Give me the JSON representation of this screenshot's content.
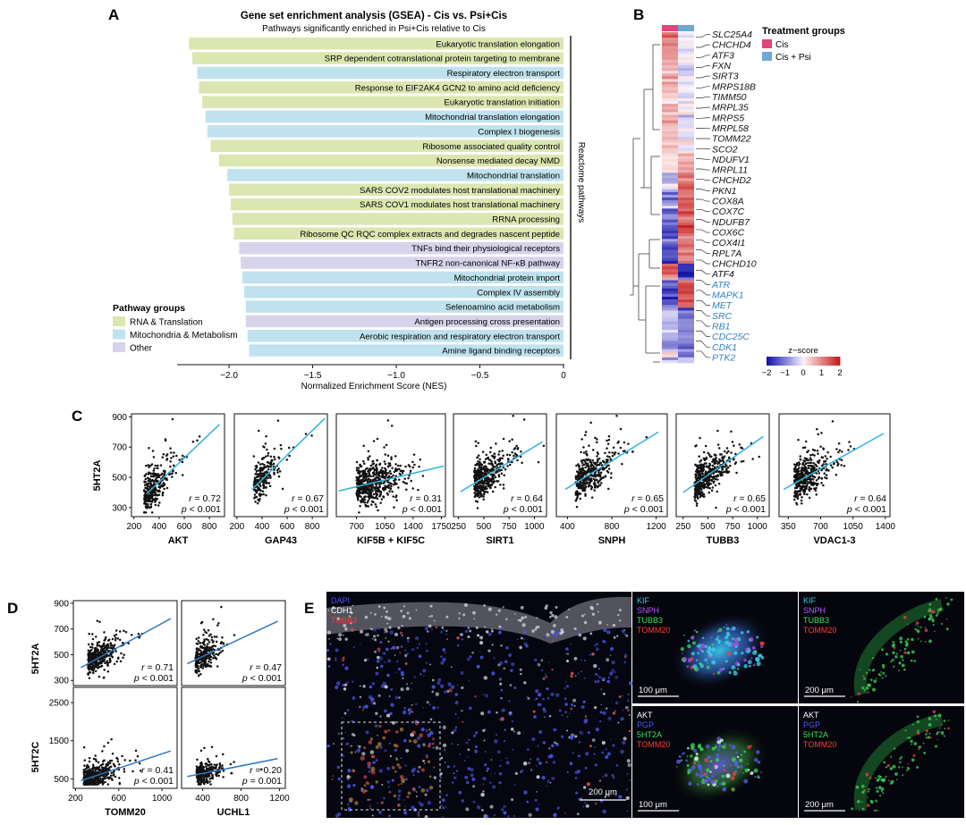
{
  "panel_letters": {
    "A": "A",
    "B": "B",
    "C": "C",
    "D": "D",
    "E": "E"
  },
  "colors": {
    "rna": "#dbe6b0",
    "mito": "#bfe2ee",
    "other": "#d7d3ea",
    "cis": "#e0457b",
    "cis_psi": "#6fa8d6",
    "fit_c": "#2fb3df",
    "fit_d": "#2b77c2",
    "gene_blue": "#2f80c8"
  },
  "gsea": {
    "title": "Gene set enrichment analysis (GSEA) - Cis vs. Psi+Cis",
    "subtitle": "Pathways significantly enriched in Psi+Cis relative to Cis",
    "side_label": "Reactome pathways",
    "legend_title": "Pathway groups",
    "legend_items": [
      {
        "label": "RNA & Translation",
        "group": "rna"
      },
      {
        "label": "Mitochondria & Metabolism",
        "group": "mito"
      },
      {
        "label": "Other",
        "group": "other"
      }
    ]
  },
  "chart_data": [
    {
      "type": "bar",
      "orientation": "horizontal",
      "title": "Gene set enrichment analysis (GSEA) - Cis vs. Psi+Cis",
      "subtitle": "Pathways significantly enriched in Psi+Cis relative to Cis",
      "xlabel": "Normalized Enrichment Score (NES)",
      "xlim": [
        -2.3,
        0
      ],
      "xticks": [
        "−2.0",
        "−1.5",
        "−1.0",
        "−0.5",
        "0"
      ],
      "xtick_values": [
        -2.0,
        -1.5,
        -1.0,
        -0.5,
        0
      ],
      "categories": [
        "Eukaryotic translation elongation",
        "SRP dependent cotranslational protein targeting to membrane",
        "Respiratory electron transport",
        "Response to EIF2AK4 GCN2 to amino acid deficiency",
        "Eukaryotic translation initiation",
        "Mitochondrial translation elongation",
        "Complex I biogenesis",
        "Ribosome associated quality control",
        "Nonsense mediated decay NMD",
        "Mitochondrial translation",
        "SARS COV2 modulates host translational machinery",
        "SARS COV1 modulates host translational machinery",
        "RRNA processing",
        "Ribosome QC RQC complex extracts and degrades nascent peptide",
        "TNFs bind their physiological receptors",
        "TNFR2 non-canonical NF-κB pathway",
        "Mitochondrial protein import",
        "Complex IV assembly",
        "Selenoamino acid metabolism",
        "Antigen processing cross presentation",
        "Aerobic respiration and respiratory electron transport",
        "Amine ligand binding receptors"
      ],
      "values": [
        -2.24,
        -2.22,
        -2.19,
        -2.18,
        -2.16,
        -2.14,
        -2.13,
        -2.11,
        -2.06,
        -2.01,
        -2.0,
        -1.99,
        -1.98,
        -1.97,
        -1.94,
        -1.93,
        -1.92,
        -1.91,
        -1.9,
        -1.9,
        -1.89,
        -1.88
      ],
      "groups": [
        "rna",
        "rna",
        "mito",
        "rna",
        "rna",
        "mito",
        "mito",
        "rna",
        "rna",
        "mito",
        "rna",
        "rna",
        "rna",
        "rna",
        "other",
        "other",
        "mito",
        "mito",
        "mito",
        "other",
        "mito",
        "mito"
      ]
    },
    {
      "type": "heatmap",
      "columns": [
        "Cis",
        "Cis + Psi"
      ],
      "legend_title": "Treatment groups",
      "colorbar_title": "z−score",
      "colorbar_ticks": [
        "−2",
        "−1",
        "0",
        "1",
        "2"
      ],
      "colorbar_values": [
        -2,
        -1,
        0,
        1,
        2
      ],
      "genes": [
        {
          "name": "SLC25A4",
          "hl": false
        },
        {
          "name": "CHCHD4",
          "hl": false
        },
        {
          "name": "ATF3",
          "hl": false
        },
        {
          "name": "FXN",
          "hl": false
        },
        {
          "name": "SIRT3",
          "hl": false
        },
        {
          "name": "MRPS18B",
          "hl": false
        },
        {
          "name": "TIMM50",
          "hl": false
        },
        {
          "name": "MRPL35",
          "hl": false
        },
        {
          "name": "MRPS5",
          "hl": false
        },
        {
          "name": "MRPL58",
          "hl": false
        },
        {
          "name": "TOMM22",
          "hl": false
        },
        {
          "name": "SCO2",
          "hl": false
        },
        {
          "name": "NDUFV1",
          "hl": false
        },
        {
          "name": "MRPL11",
          "hl": false
        },
        {
          "name": "CHCHD2",
          "hl": false
        },
        {
          "name": "PKN1",
          "hl": false
        },
        {
          "name": "COX8A",
          "hl": false
        },
        {
          "name": "COX7C",
          "hl": false
        },
        {
          "name": "NDUFB7",
          "hl": false
        },
        {
          "name": "COX6C",
          "hl": false
        },
        {
          "name": "COX4I1",
          "hl": false
        },
        {
          "name": "RPL7A",
          "hl": false
        },
        {
          "name": "CHCHD10",
          "hl": false
        },
        {
          "name": "ATF4",
          "hl": false
        },
        {
          "name": "ATR",
          "hl": true
        },
        {
          "name": "MAPK1",
          "hl": true
        },
        {
          "name": "MET",
          "hl": true
        },
        {
          "name": "SRC",
          "hl": true
        },
        {
          "name": "RB1",
          "hl": true
        },
        {
          "name": "CDC25C",
          "hl": true
        },
        {
          "name": "CDK1",
          "hl": true
        },
        {
          "name": "PTK2",
          "hl": true
        }
      ]
    },
    {
      "type": "scatter",
      "ylabel": "5HT2A",
      "yticks": [
        "300",
        "500",
        "700",
        "900"
      ],
      "ytick_values": [
        300,
        500,
        700,
        900
      ],
      "ylim": [
        240,
        920
      ],
      "panels": [
        {
          "xlabel": "AKT",
          "xticks": [
            "200",
            "400",
            "600",
            "800"
          ],
          "xtick_values": [
            200,
            400,
            600,
            800
          ],
          "xlim": [
            180,
            920
          ],
          "r": "0.72",
          "p": "0.001",
          "fit": [
            [
              300,
              390
            ],
            [
              880,
              850
            ]
          ],
          "cx": 330,
          "cy": 430,
          "sx": 100,
          "sy": 110,
          "n": 300
        },
        {
          "xlabel": "GAP43",
          "xticks": [
            "200",
            "400",
            "600",
            "800"
          ],
          "xtick_values": [
            200,
            400,
            600,
            800
          ],
          "xlim": [
            180,
            920
          ],
          "r": "0.67",
          "p": "0.001",
          "fit": [
            [
              320,
              420
            ],
            [
              900,
              890
            ]
          ],
          "cx": 380,
          "cy": 450,
          "sx": 90,
          "sy": 110,
          "n": 220
        },
        {
          "xlabel": "KIF5B + KIF5C",
          "xticks": [
            "700",
            "1050",
            "1400",
            "1750"
          ],
          "xtick_values": [
            700,
            1050,
            1400,
            1750
          ],
          "xlim": [
            450,
            1800
          ],
          "r": "0.31",
          "p": "0.001",
          "fit": [
            [
              480,
              410
            ],
            [
              1780,
              575
            ]
          ],
          "cx": 830,
          "cy": 430,
          "sx": 260,
          "sy": 120,
          "n": 520
        },
        {
          "xlabel": "SIRT1",
          "xticks": [
            "250",
            "500",
            "750",
            "1000"
          ],
          "xtick_values": [
            250,
            500,
            750,
            1000
          ],
          "xlim": [
            200,
            1120
          ],
          "r": "0.64",
          "p": "0.001",
          "fit": [
            [
              270,
              405
            ],
            [
              1080,
              735
            ]
          ],
          "cx": 480,
          "cy": 440,
          "sx": 150,
          "sy": 110,
          "n": 420
        },
        {
          "xlabel": "SNPH",
          "xticks": [
            "400",
            "800",
            "1200"
          ],
          "xtick_values": [
            400,
            800,
            1200
          ],
          "xlim": [
            300,
            1300
          ],
          "r": "0.65",
          "p": "0.001",
          "fit": [
            [
              380,
              420
            ],
            [
              1220,
              800
            ]
          ],
          "cx": 550,
          "cy": 450,
          "sx": 150,
          "sy": 110,
          "n": 380
        },
        {
          "xlabel": "TUBB3",
          "xticks": [
            "250",
            "500",
            "750",
            "1000"
          ],
          "xtick_values": [
            250,
            500,
            750,
            1000
          ],
          "xlim": [
            180,
            1120
          ],
          "r": "0.65",
          "p": "0.001",
          "fit": [
            [
              250,
              400
            ],
            [
              1060,
              770
            ]
          ],
          "cx": 450,
          "cy": 440,
          "sx": 170,
          "sy": 110,
          "n": 420
        },
        {
          "xlabel": "VDAC1-3",
          "xticks": [
            "350",
            "700",
            "1050",
            "1400"
          ],
          "xtick_values": [
            350,
            700,
            1050,
            1400
          ],
          "xlim": [
            250,
            1450
          ],
          "r": "0.64",
          "p": "0.001",
          "fit": [
            [
              300,
              420
            ],
            [
              1380,
              790
            ]
          ],
          "cx": 500,
          "cy": 440,
          "sx": 170,
          "sy": 110,
          "n": 420
        }
      ]
    },
    {
      "type": "scatter",
      "xticks": [
        "200",
        "600",
        "1000"
      ],
      "xtick_values": [
        200,
        600,
        1000
      ],
      "xticks_right": [
        "400",
        "800",
        "1200"
      ],
      "xtick_values_right": [
        400,
        800,
        1200
      ],
      "panels": [
        {
          "row": 0,
          "col": 0,
          "ylabel": "5HT2A",
          "xlabel": "",
          "xlim": [
            180,
            1140
          ],
          "ylim": [
            260,
            920
          ],
          "yticks": [
            "300",
            "500",
            "700",
            "900"
          ],
          "ytick_values": [
            300,
            500,
            700,
            900
          ],
          "r": "0.71",
          "p": "0.001",
          "fit": [
            [
              250,
              400
            ],
            [
              1080,
              780
            ]
          ],
          "cx": 380,
          "cy": 440,
          "sx": 130,
          "sy": 110,
          "n": 360
        },
        {
          "row": 0,
          "col": 1,
          "ylabel": "",
          "xlabel": "",
          "xlim": [
            180,
            1260
          ],
          "ylim": [
            260,
            920
          ],
          "r": "0.47",
          "p": "0.001",
          "fit": [
            [
              240,
              430
            ],
            [
              1180,
              760
            ]
          ],
          "cx": 380,
          "cy": 470,
          "sx": 110,
          "sy": 110,
          "n": 260
        },
        {
          "row": 1,
          "col": 0,
          "ylabel": "5HT2C",
          "xlabel": "TOMM20",
          "xlim": [
            180,
            1140
          ],
          "ylim": [
            250,
            2900
          ],
          "yticks": [
            "500",
            "1500",
            "2500"
          ],
          "ytick_values": [
            500,
            1500,
            2500
          ],
          "r": "0.41",
          "p": "0.001",
          "fit": [
            [
              250,
              450
            ],
            [
              1080,
              1230
            ]
          ],
          "cx": 340,
          "cy": 650,
          "sx": 130,
          "sy": 300,
          "n": 380
        },
        {
          "row": 1,
          "col": 1,
          "ylabel": "",
          "xlabel": "UCHL1",
          "xlim": [
            180,
            1260
          ],
          "ylim": [
            250,
            2900
          ],
          "r": "0.20",
          "p": "0.001",
          "fit": [
            [
              240,
              560
            ],
            [
              1180,
              1030
            ]
          ],
          "cx": 390,
          "cy": 650,
          "sx": 110,
          "sy": 260,
          "n": 260
        }
      ]
    }
  ],
  "micro": {
    "large": {
      "labels": [
        "DAPI",
        "CDH1",
        "TUBB3"
      ],
      "label_colors": [
        "#4b57ff",
        "#ffffff",
        "#ff3b30"
      ],
      "scale": "200 μm"
    },
    "tiles": [
      {
        "labels": [
          "KIF",
          "SNPH",
          "TUBB3",
          "TOMM20"
        ],
        "label_colors": [
          "#35c9ef",
          "#b35cff",
          "#37e35a",
          "#ff3b30"
        ],
        "scale": "100 μm"
      },
      {
        "labels": [
          "KIF",
          "SNPH",
          "TUBB3",
          "TOMM20"
        ],
        "label_colors": [
          "#35c9ef",
          "#b35cff",
          "#37e35a",
          "#ff3b30"
        ],
        "scale": "200 μm"
      },
      {
        "labels": [
          "AKT",
          "PGP",
          "5HT2A",
          "TOMM20"
        ],
        "label_colors": [
          "#ffffff",
          "#4b57ff",
          "#37e35a",
          "#ff3b30"
        ],
        "scale": "100 μm"
      },
      {
        "labels": [
          "AKT",
          "PGP",
          "5HT2A",
          "TOMM20"
        ],
        "label_colors": [
          "#ffffff",
          "#4b57ff",
          "#37e35a",
          "#ff3b30"
        ],
        "scale": "200 μm"
      }
    ]
  }
}
